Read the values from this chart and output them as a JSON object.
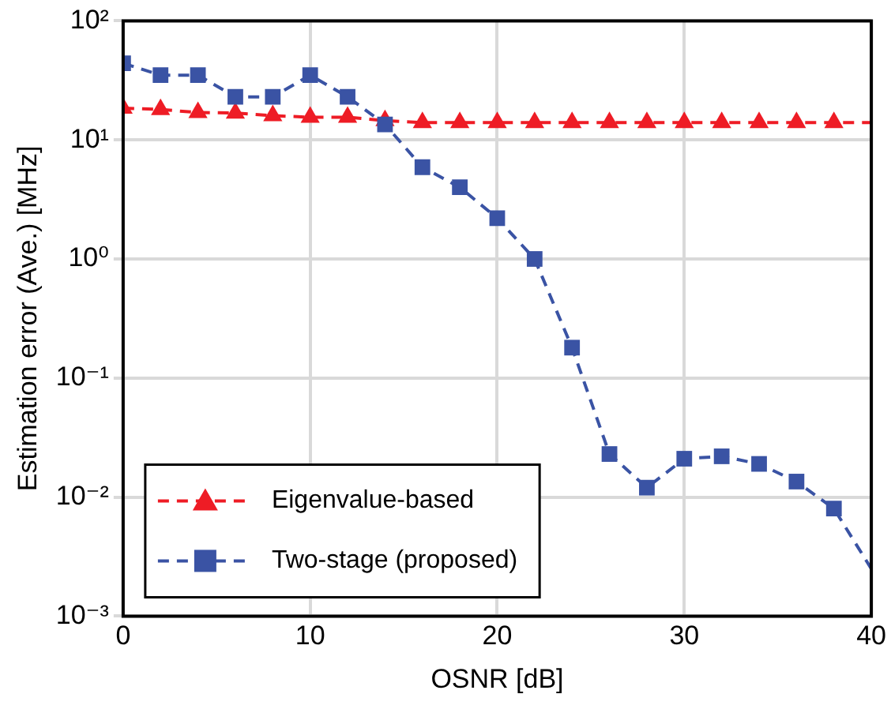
{
  "chart_data": {
    "type": "line",
    "xlabel": "OSNR [dB]",
    "ylabel": "Estimation error (Ave.) [MHz]",
    "log": "y",
    "grid": true,
    "legend": "bottom left",
    "line_style": "dashed",
    "xlim": [
      0,
      40
    ],
    "xticks": [
      0,
      10,
      20,
      30,
      40
    ],
    "ylim": [
      0.001,
      100
    ],
    "yticks": [
      {
        "value": 100,
        "label": "10²"
      },
      {
        "value": 10,
        "label": "10¹"
      },
      {
        "value": 1,
        "label": "10⁰"
      },
      {
        "value": 0.1,
        "label": "10⁻¹"
      },
      {
        "value": 0.01,
        "label": "10⁻²"
      },
      {
        "value": 0.001,
        "label": "10⁻³"
      }
    ],
    "series": [
      {
        "name": "Eigenvalue-based",
        "color": "#ee1c25",
        "marker": "triangle",
        "x": [
          0,
          2,
          4,
          6,
          8,
          10,
          12,
          14,
          16,
          18,
          20,
          22,
          24,
          26,
          28,
          30,
          32,
          34,
          36,
          38,
          40
        ],
        "values": [
          18.5,
          18,
          17,
          16.8,
          16,
          15.5,
          15.5,
          14.5,
          14,
          14,
          14,
          14,
          14,
          14,
          14,
          14,
          14,
          14,
          14,
          14,
          14
        ]
      },
      {
        "name": "Two-stage (proposed)",
        "color": "#3a53a4",
        "marker": "square",
        "x": [
          0,
          2,
          4,
          6,
          8,
          10,
          12,
          14,
          16,
          18,
          20,
          22,
          24,
          26,
          28,
          30,
          32,
          34,
          36,
          38,
          40
        ],
        "values": [
          44,
          35,
          35,
          23,
          23,
          35,
          23,
          13.5,
          5.9,
          4,
          2.2,
          1.0,
          0.18,
          0.023,
          0.012,
          0.021,
          0.022,
          0.019,
          0.0135,
          0.008,
          0.0025
        ]
      }
    ]
  }
}
